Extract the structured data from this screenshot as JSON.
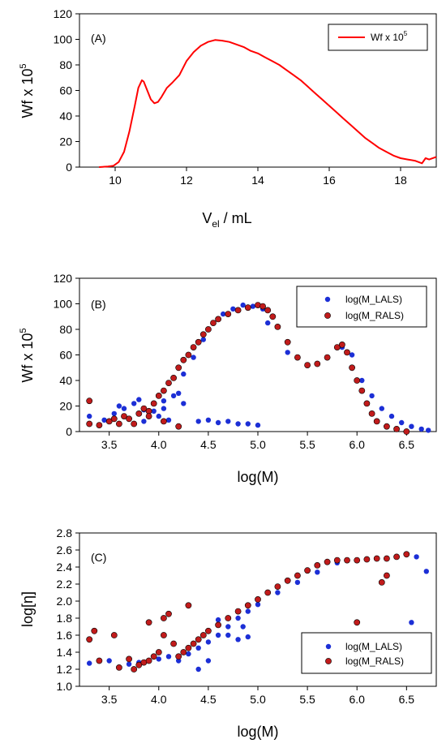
{
  "colors": {
    "red": "#ff0000",
    "blue": "#1c2fd6",
    "dark_red": "#c11b1b",
    "axis": "#000000"
  },
  "chart_data": [
    {
      "type": "line",
      "panel_label": "(A)",
      "xlabel_main": "V",
      "xlabel_sub": "el",
      "xlabel_tail": " / mL",
      "ylabel_main": "Wf x 10",
      "ylabel_sup": "5",
      "xlim": [
        9,
        19
      ],
      "ylim": [
        0,
        120
      ],
      "xticks": [
        10,
        12,
        14,
        16,
        18
      ],
      "yticks": [
        0,
        20,
        40,
        60,
        80,
        100,
        120
      ],
      "legend_position": "top-right",
      "legend_main": "Wf x 10",
      "legend_sup": "5",
      "series": [
        {
          "name": "Wf x 10^5",
          "color": "#ff0000",
          "x": [
            9.55,
            9.8,
            9.95,
            10.1,
            10.25,
            10.4,
            10.55,
            10.65,
            10.75,
            10.8,
            10.9,
            11.0,
            11.1,
            11.2,
            11.3,
            11.45,
            11.6,
            11.8,
            12.0,
            12.2,
            12.4,
            12.6,
            12.8,
            13.0,
            13.2,
            13.4,
            13.6,
            13.8,
            14.0,
            14.2,
            14.4,
            14.6,
            14.8,
            15.0,
            15.2,
            15.4,
            15.6,
            15.8,
            16.0,
            16.2,
            16.4,
            16.6,
            16.8,
            17.0,
            17.2,
            17.4,
            17.6,
            17.8,
            18.0,
            18.2,
            18.4,
            18.6,
            18.7,
            18.8,
            19.0
          ],
          "y": [
            0,
            0.5,
            1,
            4,
            12,
            28,
            48,
            62,
            68,
            67,
            60,
            53,
            50,
            51,
            55,
            62,
            66,
            72,
            83,
            90,
            95,
            98,
            99.5,
            99,
            98,
            96,
            94,
            91,
            89,
            86,
            83,
            80,
            76,
            72,
            68,
            63,
            58,
            53,
            48,
            43,
            38,
            33,
            28,
            23,
            19,
            15,
            12,
            9,
            7,
            6,
            5,
            3,
            7,
            6,
            8
          ]
        }
      ]
    },
    {
      "type": "scatter",
      "panel_label": "(B)",
      "xlabel": "log(M)",
      "ylabel_main": "Wf x 10",
      "ylabel_sup": "5",
      "xlim": [
        3.2,
        6.8
      ],
      "ylim": [
        0,
        120
      ],
      "xticks": [
        3.5,
        4.0,
        4.5,
        5.0,
        5.5,
        6.0,
        6.5
      ],
      "yticks": [
        0,
        20,
        40,
        60,
        80,
        100,
        120
      ],
      "legend_position": "top-right",
      "series": [
        {
          "name": "log(M_LALS)",
          "color": "#1c2fd6",
          "x": [
            3.3,
            3.45,
            3.55,
            3.65,
            3.75,
            3.85,
            3.95,
            4.05,
            4.15,
            4.25,
            4.35,
            4.45,
            4.55,
            4.65,
            4.75,
            4.85,
            4.95,
            5.05,
            3.6,
            3.85,
            4.0,
            4.1,
            4.2,
            4.4,
            4.5,
            4.6,
            4.7,
            4.8,
            4.9,
            5.0,
            5.1,
            5.3,
            5.5,
            5.7,
            5.85,
            5.95,
            6.05,
            6.15,
            6.25,
            6.35,
            6.45,
            6.55,
            6.65,
            6.72,
            3.8,
            4.05,
            4.25
          ],
          "y": [
            12,
            9,
            14,
            18,
            22,
            8,
            16,
            24,
            28,
            45,
            58,
            72,
            85,
            92,
            96,
            99,
            98,
            96,
            20,
            17,
            12,
            9,
            30,
            8,
            9,
            7,
            8,
            6,
            6,
            5,
            85,
            62,
            52,
            58,
            66,
            60,
            40,
            28,
            18,
            12,
            7,
            4,
            2,
            1,
            25,
            18,
            22
          ]
        },
        {
          "name": "log(M_RALS)",
          "color": "#c11b1b",
          "x": [
            3.3,
            3.4,
            3.5,
            3.6,
            3.65,
            3.7,
            3.8,
            3.85,
            3.9,
            3.95,
            4.0,
            4.05,
            4.1,
            4.15,
            4.2,
            4.25,
            4.3,
            4.35,
            4.4,
            4.45,
            4.5,
            4.55,
            4.6,
            4.7,
            4.8,
            4.9,
            5.0,
            5.05,
            5.1,
            5.15,
            5.2,
            5.3,
            5.4,
            5.5,
            5.6,
            5.7,
            5.8,
            5.85,
            5.9,
            5.95,
            6.0,
            6.05,
            6.1,
            6.15,
            6.2,
            6.3,
            6.4,
            6.5,
            3.3,
            3.55,
            3.75,
            3.9,
            4.05,
            4.2
          ],
          "y": [
            6,
            5,
            8,
            6,
            12,
            10,
            14,
            18,
            16,
            22,
            28,
            32,
            38,
            42,
            50,
            56,
            60,
            66,
            70,
            76,
            80,
            85,
            88,
            92,
            95,
            97,
            99,
            98,
            95,
            90,
            82,
            70,
            58,
            52,
            53,
            58,
            66,
            68,
            62,
            50,
            40,
            32,
            22,
            14,
            8,
            4,
            2,
            0,
            24,
            10,
            6,
            12,
            8,
            4
          ]
        }
      ]
    },
    {
      "type": "scatter",
      "panel_label": "(C)",
      "xlabel": "log(M)",
      "ylabel": "log[η]",
      "xlim": [
        3.2,
        6.8
      ],
      "ylim": [
        1.0,
        2.8
      ],
      "xticks": [
        3.5,
        4.0,
        4.5,
        5.0,
        5.5,
        6.0,
        6.5
      ],
      "yticks": [
        1.0,
        1.2,
        1.4,
        1.6,
        1.8,
        2.0,
        2.2,
        2.4,
        2.6,
        2.8
      ],
      "legend_position": "bottom-right",
      "series": [
        {
          "name": "log(M_LALS)",
          "color": "#1c2fd6",
          "x": [
            3.3,
            3.5,
            3.6,
            3.7,
            3.8,
            3.9,
            4.0,
            4.1,
            4.2,
            4.3,
            4.4,
            4.5,
            4.6,
            4.7,
            4.8,
            4.9,
            5.0,
            5.2,
            5.4,
            5.6,
            5.8,
            6.0,
            6.2,
            6.4,
            6.5,
            6.6,
            6.7,
            4.6,
            4.7,
            4.8,
            4.85,
            4.9,
            4.4,
            4.5,
            6.55
          ],
          "y": [
            1.27,
            1.3,
            1.22,
            1.26,
            1.28,
            1.3,
            1.32,
            1.35,
            1.3,
            1.38,
            1.45,
            1.52,
            1.6,
            1.7,
            1.8,
            1.88,
            1.96,
            2.1,
            2.22,
            2.34,
            2.45,
            2.48,
            2.5,
            2.52,
            2.55,
            2.52,
            2.35,
            1.78,
            1.6,
            1.55,
            1.7,
            1.58,
            1.2,
            1.3,
            1.75
          ]
        },
        {
          "name": "log(M_RALS)",
          "color": "#c11b1b",
          "x": [
            3.3,
            3.35,
            3.4,
            3.55,
            3.6,
            3.7,
            3.75,
            3.8,
            3.85,
            3.9,
            3.95,
            4.0,
            4.05,
            4.1,
            4.15,
            4.2,
            4.25,
            4.3,
            4.35,
            4.4,
            4.45,
            4.5,
            4.6,
            4.7,
            4.8,
            4.9,
            5.0,
            5.1,
            5.2,
            5.3,
            5.4,
            5.5,
            5.6,
            5.7,
            5.8,
            5.9,
            6.0,
            6.1,
            6.2,
            6.3,
            6.4,
            6.5,
            4.3,
            3.9,
            4.05,
            6.0,
            6.25,
            6.3
          ],
          "y": [
            1.55,
            1.65,
            1.3,
            1.6,
            1.22,
            1.32,
            1.2,
            1.25,
            1.28,
            1.3,
            1.35,
            1.4,
            1.6,
            1.85,
            1.5,
            1.35,
            1.4,
            1.45,
            1.5,
            1.55,
            1.6,
            1.65,
            1.72,
            1.8,
            1.88,
            1.95,
            2.02,
            2.1,
            2.17,
            2.24,
            2.3,
            2.36,
            2.42,
            2.46,
            2.48,
            2.48,
            2.48,
            2.49,
            2.5,
            2.5,
            2.52,
            2.55,
            1.95,
            1.75,
            1.8,
            1.75,
            2.22,
            2.3
          ]
        }
      ]
    }
  ]
}
